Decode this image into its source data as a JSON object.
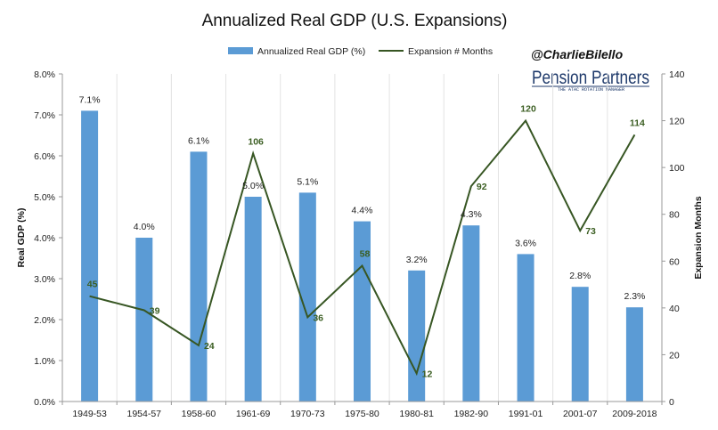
{
  "chart_data": {
    "type": "bar+line",
    "title": "Annualized Real GDP (U.S. Expansions)",
    "categories": [
      "1949-53",
      "1954-57",
      "1958-60",
      "1961-69",
      "1970-73",
      "1975-80",
      "1980-81",
      "1982-90",
      "1991-01",
      "2001-07",
      "2009-2018"
    ],
    "series": [
      {
        "name": "Annualized Real GDP (%)",
        "type": "bar",
        "axis": "left",
        "color": "#5b9bd5",
        "values": [
          7.1,
          4.0,
          6.1,
          5.0,
          5.1,
          4.4,
          3.2,
          4.3,
          3.6,
          2.8,
          2.3
        ],
        "labels": [
          "7.1%",
          "4.0%",
          "6.1%",
          "5.0%",
          "5.1%",
          "4.4%",
          "3.2%",
          "4.3%",
          "3.6%",
          "2.8%",
          "2.3%"
        ]
      },
      {
        "name": "Expansion # Months",
        "type": "line",
        "axis": "right",
        "color": "#375623",
        "values": [
          45,
          39,
          24,
          106,
          36,
          58,
          12,
          92,
          120,
          73,
          114
        ],
        "labels": [
          "45",
          "39",
          "24",
          "106",
          "36",
          "58",
          "12",
          "92",
          "120",
          "73",
          "114"
        ]
      }
    ],
    "ylabel": "Real GDP (%)",
    "y2label": "Expansion Months",
    "ylim": [
      0,
      8
    ],
    "y2lim": [
      0,
      140
    ],
    "yticks": [
      "0.0%",
      "1.0%",
      "2.0%",
      "3.0%",
      "4.0%",
      "5.0%",
      "6.0%",
      "7.0%",
      "8.0%"
    ],
    "y2ticks": [
      "0",
      "20",
      "40",
      "60",
      "80",
      "100",
      "120",
      "140"
    ],
    "grid": "vertical category separators",
    "legend": "top-center"
  },
  "watermark": {
    "handle": "@CharlieBilello",
    "brand": "Pension Partners",
    "tagline": "THE ATAC ROTATION MANAGER"
  }
}
